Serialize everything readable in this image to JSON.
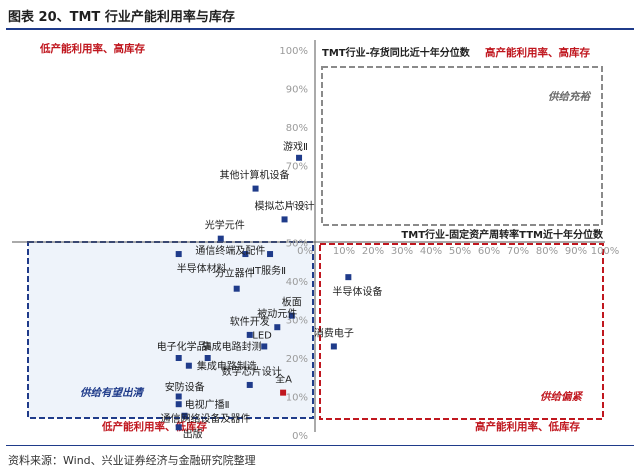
{
  "figure": {
    "title": "图表 20、TMT 行业产能利用率与库存",
    "source": "资料来源：Wind、兴业证券经济与金融研究院整理"
  },
  "chart_data": {
    "type": "scatter",
    "xlabel": "TMT行业-固定资产周转率TTM近十年分位数",
    "ylabel": "TMT行业-存货同比近十年分位数",
    "xlim": [
      0,
      100
    ],
    "ylim": [
      0,
      100
    ],
    "x_ticks": [
      "0%",
      "10%",
      "20%",
      "30%",
      "40%",
      "50%",
      "60%",
      "70%",
      "80%",
      "90%",
      "100%"
    ],
    "y_ticks": [
      "0%",
      "10%",
      "20%",
      "30%",
      "40%",
      "50%",
      "60%",
      "70%",
      "80%",
      "90%",
      "100%"
    ],
    "quadrant_labels": {
      "top_left": "低产能利用率、高库存",
      "top_right": "高产能利用率、高库存",
      "bottom_left": "低产能利用率、低库存",
      "bottom_right": "高产能利用率、低库存"
    },
    "quadrant_notes": {
      "top_right": "供给充裕",
      "bottom_left": "供给有望出清",
      "bottom_right": "供给偏紧"
    },
    "points": [
      {
        "name": "游戏Ⅱ",
        "x": -5.5,
        "y": 72
      },
      {
        "name": "其他计算机设备",
        "x": -20.5,
        "y": 64
      },
      {
        "name": "模拟芯片设计",
        "x": -10.5,
        "y": 56
      },
      {
        "name": "光学元件",
        "x": -32.5,
        "y": 51
      },
      {
        "name": "通信终端及配件",
        "x": -24,
        "y": 47
      },
      {
        "name": "半导体材料",
        "x": -47,
        "y": 47
      },
      {
        "name": "IT服务Ⅱ",
        "x": -15.5,
        "y": 47
      },
      {
        "name": "分立器件",
        "x": -27,
        "y": 38
      },
      {
        "name": "半导体设备",
        "x": 11.5,
        "y": 41
      },
      {
        "name": "板面",
        "x": -8,
        "y": 31
      },
      {
        "name": "被动元件",
        "x": -13,
        "y": 28
      },
      {
        "name": "软件开发",
        "x": -22.5,
        "y": 26
      },
      {
        "name": "LED",
        "x": -17.5,
        "y": 23
      },
      {
        "name": "消费电子",
        "x": 6.5,
        "y": 23
      },
      {
        "name": "集成电路封测",
        "x": -37,
        "y": 20
      },
      {
        "name": "电子化学品Ⅱ",
        "x": -47,
        "y": 20
      },
      {
        "name": "集成电路制造",
        "x": -43.5,
        "y": 18
      },
      {
        "name": "数字芯片设计",
        "x": -22.5,
        "y": 13
      },
      {
        "name": "全A",
        "x": -11,
        "y": 11,
        "highlight": true
      },
      {
        "name": "安防设备",
        "x": -47,
        "y": 10
      },
      {
        "name": "电视广播Ⅱ",
        "x": -47,
        "y": 8
      },
      {
        "name": "通信网络设备及器件",
        "x": -45,
        "y": 5
      },
      {
        "name": "出版",
        "x": -47,
        "y": 2
      }
    ],
    "colors": {
      "point": "#1f3b8a",
      "highlight": "#c0171f",
      "box_blue": "#1f3b8a",
      "box_red": "#c0171f",
      "box_gray": "#8a8a8a",
      "fill_blue": "#eef3fa"
    },
    "grid": false
  }
}
